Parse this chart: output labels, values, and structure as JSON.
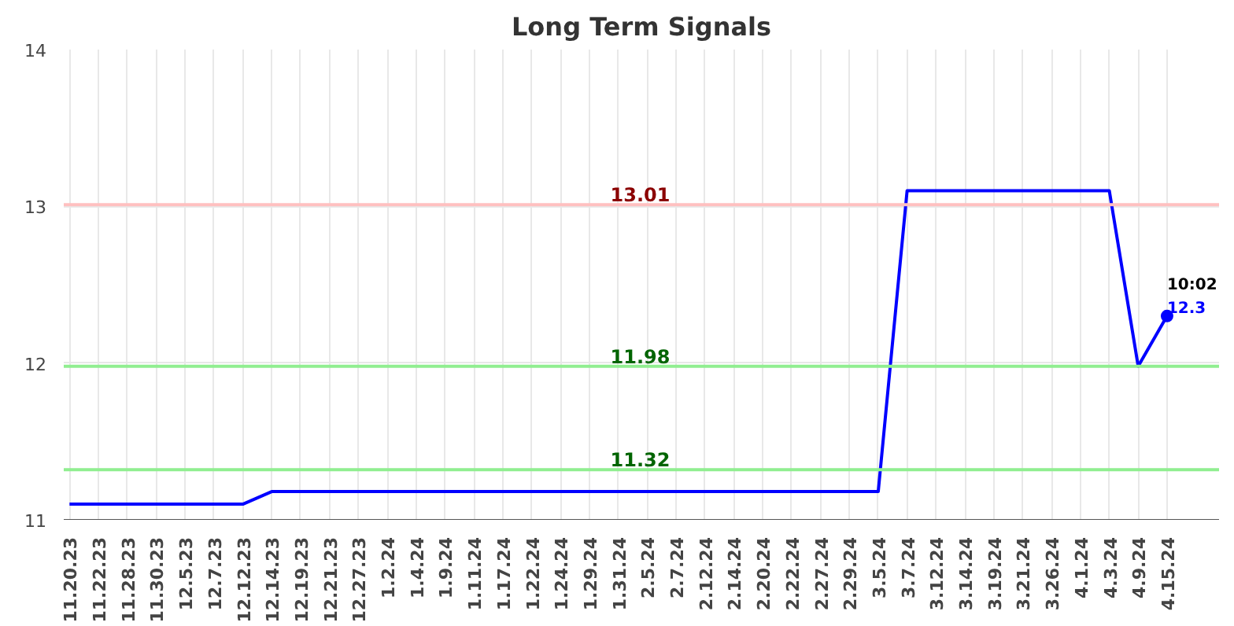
{
  "chart_data": {
    "type": "line",
    "title": "Long Term Signals",
    "categories": [
      "11.20.23",
      "11.22.23",
      "11.28.23",
      "11.30.23",
      "12.5.23",
      "12.7.23",
      "12.12.23",
      "12.14.23",
      "12.19.23",
      "12.21.23",
      "12.27.23",
      "1.2.24",
      "1.4.24",
      "1.9.24",
      "1.11.24",
      "1.17.24",
      "1.22.24",
      "1.24.24",
      "1.29.24",
      "1.31.24",
      "2.5.24",
      "2.7.24",
      "2.12.24",
      "2.14.24",
      "2.20.24",
      "2.22.24",
      "2.27.24",
      "2.29.24",
      "3.5.24",
      "3.7.24",
      "3.12.24",
      "3.14.24",
      "3.19.24",
      "3.21.24",
      "3.26.24",
      "4.1.24",
      "4.3.24",
      "4.9.24",
      "4.15.24"
    ],
    "series": [
      {
        "color": "#0000ff",
        "values": [
          11.1,
          11.1,
          11.1,
          11.1,
          11.1,
          11.1,
          11.1,
          11.18,
          11.18,
          11.18,
          11.18,
          11.18,
          11.18,
          11.18,
          11.18,
          11.18,
          11.18,
          11.18,
          11.18,
          11.18,
          11.18,
          11.18,
          11.18,
          11.18,
          11.18,
          11.18,
          11.18,
          11.18,
          11.18,
          13.1,
          13.1,
          13.1,
          13.1,
          13.1,
          13.1,
          13.1,
          13.1,
          11.98,
          12.3
        ]
      }
    ],
    "ylim": [
      11,
      14
    ],
    "yticks": [
      11,
      12,
      13,
      14
    ],
    "grid": true,
    "ref_lines": [
      {
        "axis": "y",
        "value": 13.01,
        "label": "13.01",
        "color": "#ffc0c0"
      },
      {
        "axis": "y",
        "value": 11.98,
        "label": "11.98",
        "color": "#90ee90"
      },
      {
        "axis": "y",
        "value": 11.32,
        "label": "11.32",
        "color": "#90ee90"
      }
    ],
    "annotations": [
      {
        "text": "10:02",
        "x": "4.15.24",
        "y": 12.3
      },
      {
        "text": "12.3",
        "x": "4.15.24",
        "y": 12.3
      }
    ]
  }
}
